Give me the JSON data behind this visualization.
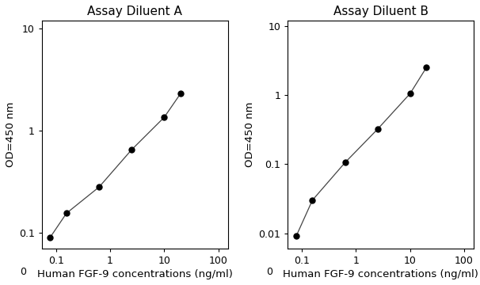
{
  "panel_A": {
    "title": "Assay Diluent A",
    "x": [
      0.078,
      0.156,
      0.625,
      2.5,
      10,
      20
    ],
    "y": [
      0.09,
      0.155,
      0.28,
      0.65,
      1.35,
      2.3
    ],
    "xlim": [
      0.055,
      150
    ],
    "ylim": [
      0.07,
      12
    ],
    "xticks": [
      0.1,
      1,
      10,
      100
    ],
    "xtick_labels": [
      "0.1",
      "1",
      "10",
      "100"
    ],
    "yticks": [
      0.1,
      1,
      10
    ],
    "ytick_labels": [
      "0.1",
      "1",
      "10"
    ]
  },
  "panel_B": {
    "title": "Assay Diluent B",
    "x": [
      0.078,
      0.156,
      0.625,
      2.5,
      10,
      20
    ],
    "y": [
      0.009,
      0.03,
      0.105,
      0.32,
      1.05,
      2.5
    ],
    "xlim": [
      0.055,
      150
    ],
    "ylim": [
      0.006,
      12
    ],
    "xticks": [
      0.1,
      1,
      10,
      100
    ],
    "xtick_labels": [
      "0.1",
      "1",
      "10",
      "100"
    ],
    "yticks": [
      0.01,
      0.1,
      1,
      10
    ],
    "ytick_labels": [
      "0.01",
      "0.1",
      "1",
      "10"
    ]
  },
  "xlabel": "Human FGF-9 concentrations (ng/ml)",
  "ylabel": "OD=450 nm",
  "marker": "o",
  "marker_color": "black",
  "marker_size": 5,
  "line_color": "#444444",
  "line_width": 0.9,
  "title_fontsize": 11,
  "label_fontsize": 9.5,
  "tick_fontsize": 9,
  "background_color": "#ffffff"
}
